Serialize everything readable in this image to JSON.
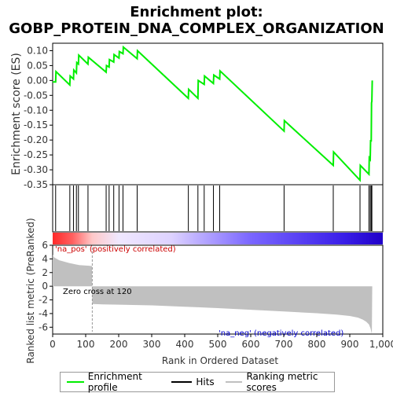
{
  "title_line1": "Enrichment plot:",
  "title_line2": "GOBP_PROTEIN_DNA_COMPLEX_ORGANIZATION",
  "legend": {
    "enrichment_label": "Enrichment profile",
    "hits_label": "Hits",
    "ranking_label": "Ranking metric scores"
  },
  "colors": {
    "enrichment": "#00ee00",
    "hits": "#000000",
    "ranking_fill": "#c0c0c0",
    "positive_text": "#cc0000",
    "negative_text": "#0000cc",
    "zero_cross_line": "#999999"
  },
  "chart_data": [
    {
      "type": "line",
      "ylabel": "Enrichment score (ES)",
      "ylim": [
        -0.35,
        0.125
      ],
      "yticks": [
        0.1,
        0.05,
        0.0,
        -0.05,
        -0.1,
        -0.15,
        -0.2,
        -0.25,
        -0.3,
        -0.35
      ],
      "ytick_labels": [
        "0.10",
        "0.05",
        "0.00",
        "-0.05",
        "-0.10",
        "-0.15",
        "-0.20",
        "-0.25",
        "-0.30",
        "-0.35"
      ],
      "xlim": [
        0,
        1000
      ],
      "series": [
        {
          "name": "Enrichment profile",
          "x": [
            0,
            9,
            10,
            52,
            53,
            63,
            64,
            72,
            73,
            78,
            79,
            107,
            108,
            162,
            163,
            171,
            172,
            185,
            186,
            201,
            202,
            213,
            214,
            256,
            257,
            411,
            412,
            440,
            441,
            459,
            460,
            487,
            488,
            506,
            507,
            701,
            702,
            850,
            851,
            931,
            932,
            958,
            959,
            962,
            963,
            965,
            966,
            967,
            968
          ],
          "y": [
            -0.005,
            -0.005,
            0.03,
            -0.015,
            0.015,
            0.005,
            0.035,
            0.025,
            0.06,
            0.055,
            0.085,
            0.055,
            0.078,
            0.028,
            0.05,
            0.045,
            0.07,
            0.062,
            0.087,
            0.075,
            0.097,
            0.09,
            0.112,
            0.073,
            0.1,
            -0.06,
            -0.03,
            -0.06,
            0.0,
            -0.013,
            0.015,
            -0.01,
            0.018,
            0.005,
            0.032,
            -0.17,
            -0.135,
            -0.285,
            -0.24,
            -0.335,
            -0.285,
            -0.315,
            -0.26,
            -0.265,
            -0.2,
            -0.205,
            -0.075,
            -0.07,
            0.0
          ]
        }
      ]
    },
    {
      "type": "hits",
      "hit_positions": [
        9,
        52,
        63,
        72,
        78,
        107,
        162,
        171,
        185,
        201,
        213,
        256,
        411,
        440,
        459,
        487,
        506,
        701,
        850,
        931,
        958,
        962,
        965,
        967
      ]
    },
    {
      "type": "area",
      "xlabel": "Rank in Ordered Dataset",
      "ylabel": "Ranked list metric (PreRanked)",
      "ylim": [
        -7,
        6
      ],
      "yticks": [
        6,
        4,
        2,
        0,
        -2,
        -4,
        -6
      ],
      "ytick_labels": [
        "6",
        "4",
        "2",
        "0",
        "-2",
        "-4",
        "-6"
      ],
      "xticks": [
        0,
        100,
        200,
        300,
        400,
        500,
        600,
        700,
        800,
        900,
        1000
      ],
      "xtick_labels": [
        "0",
        "100",
        "200",
        "300",
        "400",
        "500",
        "600",
        "700",
        "800",
        "900",
        "1,000"
      ],
      "x": [
        0,
        5,
        20,
        50,
        80,
        110,
        119,
        120,
        150,
        200,
        300,
        400,
        500,
        600,
        700,
        800,
        860,
        900,
        925,
        940,
        950,
        958,
        963,
        967,
        968
      ],
      "values": [
        4.6,
        4.2,
        3.8,
        3.4,
        3.1,
        3.0,
        2.95,
        -2.6,
        -2.65,
        -2.7,
        -2.8,
        -3.0,
        -3.2,
        -3.45,
        -3.7,
        -3.95,
        -4.15,
        -4.35,
        -4.6,
        -4.9,
        -5.2,
        -5.6,
        -6.2,
        -7.0,
        0
      ],
      "zero_cross_label": "Zero cross at 120",
      "positive_label": "'na_pos' (positively correlated)",
      "negative_label": "'na_neg' (negatively correlated)"
    }
  ]
}
